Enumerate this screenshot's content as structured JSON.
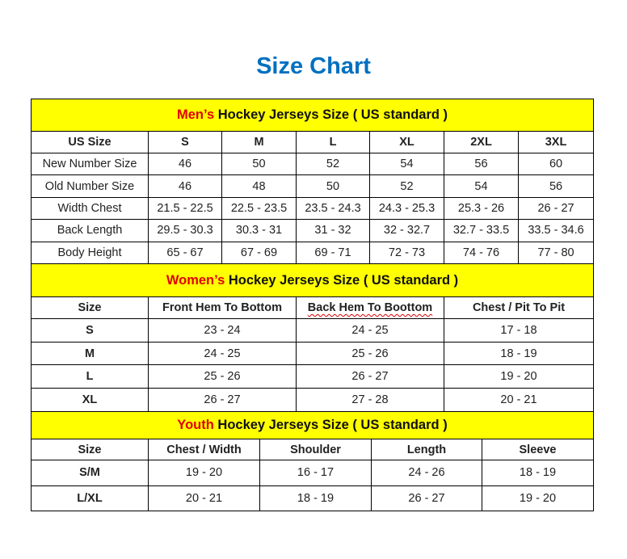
{
  "title": "Size Chart",
  "men": {
    "band_highlight": "Men’s",
    "band_rest": " Hockey Jerseys Size ( US standard )",
    "header": [
      "US Size",
      "S",
      "M",
      "L",
      "XL",
      "2XL",
      "3XL"
    ],
    "rows": [
      [
        "New Number Size",
        "46",
        "50",
        "52",
        "54",
        "56",
        "60"
      ],
      [
        "Old Number Size",
        "46",
        "48",
        "50",
        "52",
        "54",
        "56"
      ],
      [
        "Width Chest",
        "21.5 - 22.5",
        "22.5 - 23.5",
        "23.5 - 24.3",
        "24.3 - 25.3",
        "25.3 - 26",
        "26 - 27"
      ],
      [
        "Back Length",
        "29.5 - 30.3",
        "30.3 - 31",
        "31 - 32",
        "32 - 32.7",
        "32.7 - 33.5",
        "33.5 - 34.6"
      ],
      [
        "Body Height",
        "65 - 67",
        "67 - 69",
        "69 - 71",
        "72 - 73",
        "74 - 76",
        "77 - 80"
      ]
    ]
  },
  "women": {
    "band_highlight": "Women’s",
    "band_rest": " Hockey Jerseys Size ( US standard )",
    "header": [
      "Size",
      "Front Hem To Bottom",
      "Back Hem To Boottom",
      "Chest / Pit To Pit"
    ],
    "rows": [
      [
        "S",
        "23 - 24",
        "24 - 25",
        "17 - 18"
      ],
      [
        "M",
        "24 - 25",
        "25 - 26",
        "18 - 19"
      ],
      [
        "L",
        "25 - 26",
        "26 - 27",
        "19 - 20"
      ],
      [
        "XL",
        "26 - 27",
        "27 - 28",
        "20 - 21"
      ]
    ]
  },
  "youth": {
    "band_highlight": "Youth",
    "band_rest": " Hockey Jerseys Size ( US standard )",
    "header": [
      "Size",
      "Chest / Width",
      "Shoulder",
      "Length",
      "Sleeve"
    ],
    "rows": [
      [
        "S/M",
        "19 - 20",
        "16 - 17",
        "24 - 26",
        "18 - 19"
      ],
      [
        "L/XL",
        "20 - 21",
        "18 - 19",
        "26 - 27",
        "19 - 20"
      ]
    ]
  },
  "colors": {
    "title": "#0070c0",
    "band": "#ffff00",
    "highlight": "#e00000"
  }
}
